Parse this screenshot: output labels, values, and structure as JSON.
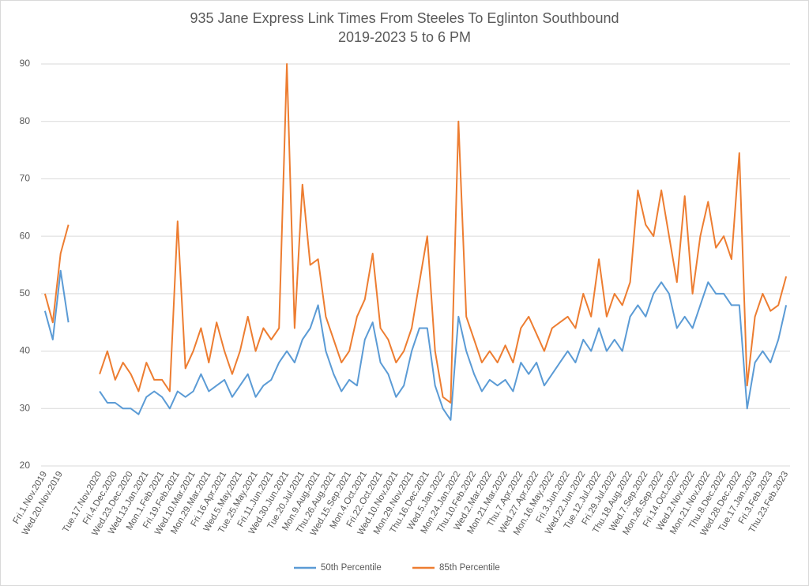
{
  "chart_data": {
    "type": "line",
    "title": "935 Jane Express Link Times From Steeles To Eglinton Southbound",
    "subtitle": "2019-2023 5 to 6 PM",
    "categories": [
      "Fri.1.Nov.2019",
      null,
      "Wed.20.Nov.2019",
      null,
      null,
      null,
      null,
      "Tue.17.Nov.2020",
      null,
      "Fri.4.Dec.2020",
      null,
      "Wed.23.Dec.2020",
      null,
      "Wed.13.Jan.2021",
      null,
      "Mon.1.Feb.2021",
      null,
      "Fri.19.Feb.2021",
      null,
      "Wed.10.Mar.2021",
      null,
      "Mon.29.Mar.2021",
      null,
      "Fri.16.Apr.2021",
      null,
      "Wed.5.May.2021",
      null,
      "Tue.25.May.2021",
      null,
      "Fri.11.Jun.2021",
      null,
      "Wed.30.Jun.2021",
      null,
      "Tue.20.Jul.2021",
      null,
      "Mon.9.Aug.2021",
      null,
      "Thu.26.Aug.2021",
      null,
      "Wed.15.Sep.2021",
      null,
      "Mon.4.Oct.2021",
      null,
      "Fri.22.Oct.2021",
      null,
      "Wed.10.Nov.2021",
      null,
      "Mon.29.Nov.2021",
      null,
      "Thu.16.Dec.2021",
      null,
      "Wed.5.Jan.2022",
      null,
      "Mon.24.Jan.2022",
      null,
      "Thu.10.Feb.2022",
      null,
      "Wed.2.Mar.2022",
      null,
      "Mon.21.Mar.2022",
      null,
      "Thu.7.Apr.2022",
      null,
      "Wed.27.Apr.2022",
      null,
      "Mon.16.May.2022",
      null,
      "Fri.3.Jun.2022",
      null,
      "Wed.22.Jun.2022",
      null,
      "Tue.12.Jul.2022",
      null,
      "Fri.29.Jul.2022",
      null,
      "Thu.18.Aug.2022",
      null,
      "Wed.7.Sep.2022",
      null,
      "Mon.26.Sep.2022",
      null,
      "Fri.14.Oct.2022",
      null,
      "Wed.2.Nov.2022",
      null,
      "Mon.21.Nov.2022",
      null,
      "Thu.8.Dec.2022",
      null,
      "Wed.28.Dec.2022",
      null,
      "Tue.17.Jan.2023",
      null,
      "Fri.3.Feb.2023",
      null,
      "Thu.23.Feb.2023"
    ],
    "series": [
      {
        "name": "50th Percentile",
        "color": "#5b9bd5",
        "values": [
          47,
          42,
          54,
          45,
          null,
          null,
          null,
          33,
          31,
          31,
          30,
          30,
          29,
          32,
          33,
          32,
          30,
          33,
          32,
          33,
          36,
          33,
          34,
          35,
          32,
          34,
          36,
          32,
          34,
          35,
          38,
          40,
          38,
          42,
          44,
          48,
          40,
          36,
          33,
          35,
          34,
          42,
          45,
          38,
          36,
          32,
          34,
          40,
          44,
          44,
          34,
          30,
          28,
          46,
          40,
          36,
          33,
          35,
          34,
          35,
          33,
          38,
          36,
          38,
          34,
          36,
          38,
          40,
          38,
          42,
          40,
          44,
          40,
          42,
          40,
          46,
          48,
          46,
          50,
          52,
          50,
          44,
          46,
          44,
          48,
          52,
          50,
          50,
          48,
          48,
          30,
          38,
          40,
          38,
          42,
          48
        ]
      },
      {
        "name": "85th Percentile",
        "color": "#ed7d31",
        "values": [
          50,
          45,
          57,
          62,
          null,
          null,
          null,
          36,
          40,
          35,
          38,
          36,
          33,
          38,
          35,
          35,
          33,
          62.6,
          37,
          40,
          44,
          38,
          45,
          40,
          36,
          40,
          46,
          40,
          44,
          42,
          44,
          90,
          44,
          69,
          55,
          56,
          46,
          42,
          38,
          40,
          46,
          49,
          57,
          44,
          42,
          38,
          40,
          44,
          52,
          60,
          40,
          32,
          31,
          80,
          46,
          42,
          38,
          40,
          38,
          41,
          38,
          44,
          46,
          43,
          40,
          44,
          45,
          46,
          44,
          50,
          46,
          56,
          46,
          50,
          48,
          52,
          68,
          62,
          60,
          68,
          60,
          52,
          67,
          50,
          60,
          66,
          58,
          60,
          56,
          74.5,
          34,
          46,
          50,
          47,
          48,
          53
        ]
      }
    ],
    "ylim": [
      20,
      90
    ],
    "yticks": [
      20,
      30,
      40,
      50,
      60,
      70,
      80,
      90
    ],
    "grid": true,
    "legend": "bottom"
  }
}
